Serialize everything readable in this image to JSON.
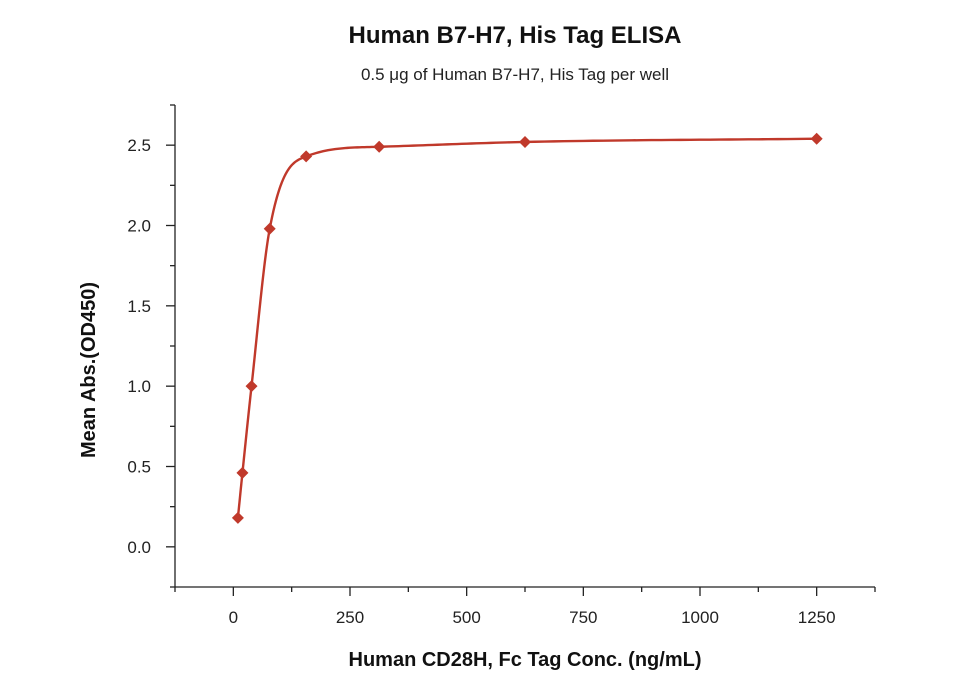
{
  "chart_data": {
    "type": "scatter",
    "title": "Human B7-H7, His Tag ELISA",
    "subtitle": "0.5 μg of Human B7-H7, His Tag per well",
    "xlabel": "Human CD28H, Fc Tag Conc. (ng/mL)",
    "ylabel": "Mean Abs.(OD450)",
    "xlim": [
      -125,
      1375
    ],
    "ylim": [
      -0.25,
      2.75
    ],
    "x_ticks": [
      0,
      250,
      500,
      750,
      1000,
      1250
    ],
    "x_tick_labels": [
      "0",
      "250",
      "500",
      "750",
      "1000",
      "1250"
    ],
    "y_ticks": [
      0.0,
      0.5,
      1.0,
      1.5,
      2.0,
      2.5
    ],
    "y_tick_labels": [
      "0.0",
      "0.5",
      "1.0",
      "1.5",
      "2.0",
      "2.5"
    ],
    "grid": false,
    "legend": "none",
    "color": "#c0392b",
    "series": [
      {
        "x": [
          9.8,
          19.5,
          39,
          78,
          156,
          312.5,
          625,
          1250
        ],
        "y": [
          0.18,
          0.46,
          1.0,
          1.98,
          2.43,
          2.49,
          2.52,
          2.54
        ]
      }
    ],
    "fit_curve": true
  }
}
